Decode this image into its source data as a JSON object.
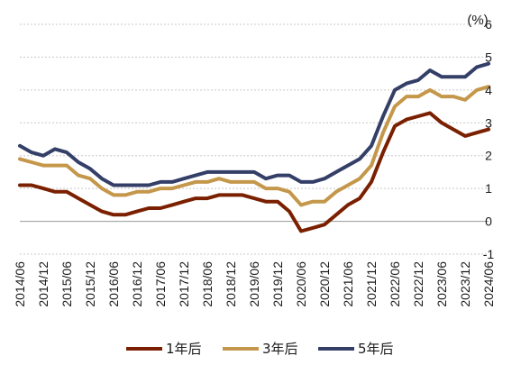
{
  "chart_data": {
    "type": "line",
    "unit_label": "(%)",
    "y_axis_position": "right",
    "ylim": [
      -1,
      6
    ],
    "y_ticks": [
      -1,
      0,
      1,
      2,
      3,
      4,
      5,
      6
    ],
    "grid": "horizontal-dashed",
    "legend_position": "bottom",
    "x_tick_labels": [
      "2014/06",
      "2014/12",
      "2015/06",
      "2015/12",
      "2016/06",
      "2016/12",
      "2017/06",
      "2017/12",
      "2018/06",
      "2018/12",
      "2019/06",
      "2019/12",
      "2020/06",
      "2020/12",
      "2021/06",
      "2021/12",
      "2022/06",
      "2022/12",
      "2023/06",
      "2023/12",
      "2024/06"
    ],
    "x_tick_step_months": 6,
    "series": [
      {
        "name": "1年后",
        "color": "#7a2000",
        "values": [
          1.1,
          1.1,
          1.0,
          0.9,
          0.9,
          0.7,
          0.5,
          0.3,
          0.2,
          0.2,
          0.3,
          0.4,
          0.4,
          0.5,
          0.6,
          0.7,
          0.7,
          0.8,
          0.8,
          0.8,
          0.7,
          0.6,
          0.6,
          0.3,
          -0.3,
          -0.2,
          -0.1,
          0.2,
          0.5,
          0.7,
          1.2,
          2.1,
          2.9,
          3.1,
          3.2,
          3.3,
          3.0,
          2.8,
          2.6,
          2.7,
          2.8
        ]
      },
      {
        "name": "3年后",
        "color": "#c4974a",
        "values": [
          1.9,
          1.8,
          1.7,
          1.7,
          1.7,
          1.4,
          1.3,
          1.0,
          0.8,
          0.8,
          0.9,
          0.9,
          1.0,
          1.0,
          1.1,
          1.2,
          1.2,
          1.3,
          1.2,
          1.2,
          1.2,
          1.0,
          1.0,
          0.9,
          0.5,
          0.6,
          0.6,
          0.9,
          1.1,
          1.3,
          1.7,
          2.7,
          3.5,
          3.8,
          3.8,
          4.0,
          3.8,
          3.8,
          3.7,
          4.0,
          4.1
        ]
      },
      {
        "name": "5年后",
        "color": "#343f68",
        "values": [
          2.3,
          2.1,
          2.0,
          2.2,
          2.1,
          1.8,
          1.6,
          1.3,
          1.1,
          1.1,
          1.1,
          1.1,
          1.2,
          1.2,
          1.3,
          1.4,
          1.5,
          1.5,
          1.5,
          1.5,
          1.5,
          1.3,
          1.4,
          1.4,
          1.2,
          1.2,
          1.3,
          1.5,
          1.7,
          1.9,
          2.3,
          3.2,
          4.0,
          4.2,
          4.3,
          4.6,
          4.4,
          4.4,
          4.4,
          4.7,
          4.8
        ]
      }
    ]
  }
}
